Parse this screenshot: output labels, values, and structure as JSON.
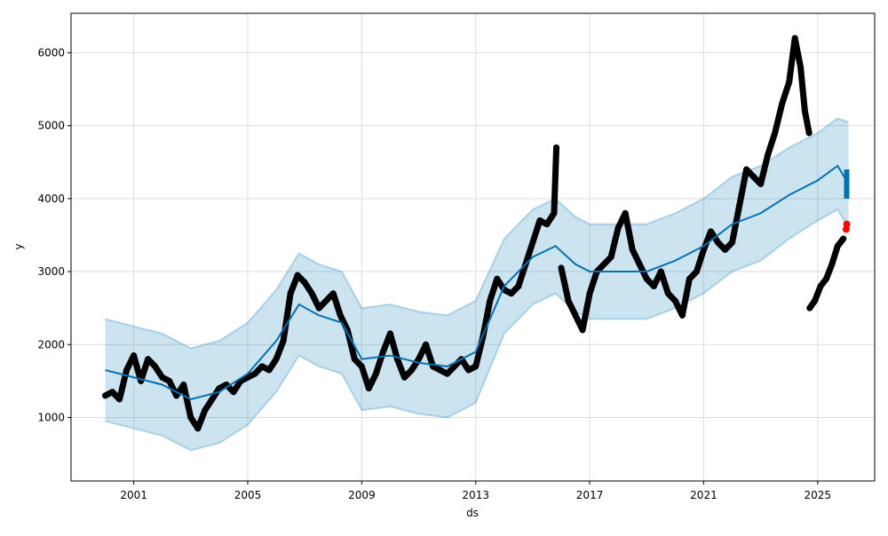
{
  "chart_data": {
    "type": "line",
    "title": "",
    "xlabel": "ds",
    "ylabel": "y",
    "xlim": [
      1998.8,
      2027.0
    ],
    "ylim": [
      130,
      6540
    ],
    "grid": true,
    "x_ticks": [
      "2001",
      "2005",
      "2009",
      "2013",
      "2017",
      "2021",
      "2025"
    ],
    "y_ticks": [
      "1000",
      "2000",
      "3000",
      "4000",
      "5000",
      "6000"
    ],
    "colors": {
      "observed": "#000000",
      "forecast": "#0072B2",
      "interval": "#0072B2",
      "highlight": "#ff0000"
    },
    "observed": [
      [
        2000.0,
        1300
      ],
      [
        2000.25,
        1350
      ],
      [
        2000.5,
        1250
      ],
      [
        2000.75,
        1650
      ],
      [
        2001.0,
        1850
      ],
      [
        2001.25,
        1500
      ],
      [
        2001.5,
        1800
      ],
      [
        2001.75,
        1700
      ],
      [
        2002.0,
        1550
      ],
      [
        2002.25,
        1500
      ],
      [
        2002.5,
        1300
      ],
      [
        2002.75,
        1450
      ],
      [
        2003.0,
        1000
      ],
      [
        2003.25,
        850
      ],
      [
        2003.5,
        1100
      ],
      [
        2003.75,
        1250
      ],
      [
        2004.0,
        1400
      ],
      [
        2004.25,
        1450
      ],
      [
        2004.5,
        1350
      ],
      [
        2004.75,
        1500
      ],
      [
        2005.0,
        1550
      ],
      [
        2005.25,
        1600
      ],
      [
        2005.5,
        1700
      ],
      [
        2005.75,
        1650
      ],
      [
        2006.0,
        1800
      ],
      [
        2006.25,
        2050
      ],
      [
        2006.5,
        2700
      ],
      [
        2006.75,
        2950
      ],
      [
        2007.0,
        2850
      ],
      [
        2007.25,
        2700
      ],
      [
        2007.5,
        2500
      ],
      [
        2007.75,
        2600
      ],
      [
        2008.0,
        2700
      ],
      [
        2008.25,
        2400
      ],
      [
        2008.5,
        2200
      ],
      [
        2008.75,
        1800
      ],
      [
        2009.0,
        1700
      ],
      [
        2009.25,
        1400
      ],
      [
        2009.5,
        1600
      ],
      [
        2009.75,
        1900
      ],
      [
        2010.0,
        2150
      ],
      [
        2010.25,
        1800
      ],
      [
        2010.5,
        1550
      ],
      [
        2010.75,
        1650
      ],
      [
        2011.0,
        1800
      ],
      [
        2011.25,
        2000
      ],
      [
        2011.5,
        1700
      ],
      [
        2011.75,
        1650
      ],
      [
        2012.0,
        1600
      ],
      [
        2012.25,
        1700
      ],
      [
        2012.5,
        1800
      ],
      [
        2012.75,
        1650
      ],
      [
        2013.0,
        1700
      ],
      [
        2013.25,
        2100
      ],
      [
        2013.5,
        2600
      ],
      [
        2013.75,
        2900
      ],
      [
        2014.0,
        2750
      ],
      [
        2014.25,
        2700
      ],
      [
        2014.5,
        2800
      ],
      [
        2014.75,
        3100
      ],
      [
        2015.0,
        3400
      ],
      [
        2015.25,
        3700
      ],
      [
        2015.5,
        3650
      ],
      [
        2015.75,
        3800
      ],
      [
        2015.83,
        4700
      ],
      [
        2016.0,
        3050
      ],
      [
        2016.25,
        2600
      ],
      [
        2016.5,
        2400
      ],
      [
        2016.75,
        2200
      ],
      [
        2017.0,
        2700
      ],
      [
        2017.25,
        3000
      ],
      [
        2017.5,
        3100
      ],
      [
        2017.75,
        3200
      ],
      [
        2018.0,
        3600
      ],
      [
        2018.25,
        3800
      ],
      [
        2018.5,
        3300
      ],
      [
        2018.75,
        3100
      ],
      [
        2019.0,
        2900
      ],
      [
        2019.25,
        2800
      ],
      [
        2019.5,
        3000
      ],
      [
        2019.75,
        2700
      ],
      [
        2020.0,
        2600
      ],
      [
        2020.25,
        2400
      ],
      [
        2020.5,
        2900
      ],
      [
        2020.75,
        3000
      ],
      [
        2021.0,
        3300
      ],
      [
        2021.25,
        3550
      ],
      [
        2021.5,
        3400
      ],
      [
        2021.75,
        3300
      ],
      [
        2022.0,
        3400
      ],
      [
        2022.25,
        3900
      ],
      [
        2022.5,
        4400
      ],
      [
        2022.75,
        4300
      ],
      [
        2023.0,
        4200
      ],
      [
        2023.25,
        4600
      ],
      [
        2023.5,
        4900
      ],
      [
        2023.75,
        5300
      ],
      [
        2024.0,
        5600
      ],
      [
        2024.2,
        6200
      ],
      [
        2024.4,
        5800
      ],
      [
        2024.55,
        5200
      ],
      [
        2024.7,
        4900
      ],
      [
        2024.72,
        2500
      ],
      [
        2024.9,
        2600
      ],
      [
        2025.1,
        2800
      ],
      [
        2025.3,
        2900
      ],
      [
        2025.5,
        3100
      ],
      [
        2025.7,
        3350
      ],
      [
        2025.9,
        3450
      ]
    ],
    "highlighted": [
      [
        2026.0,
        3580
      ],
      [
        2026.02,
        3650
      ]
    ],
    "yhat": [
      [
        2000.0,
        1650
      ],
      [
        2001.0,
        1550
      ],
      [
        2002.0,
        1450
      ],
      [
        2003.0,
        1250
      ],
      [
        2004.0,
        1350
      ],
      [
        2005.0,
        1600
      ],
      [
        2006.0,
        2050
      ],
      [
        2006.8,
        2550
      ],
      [
        2007.5,
        2400
      ],
      [
        2008.3,
        2300
      ],
      [
        2009.0,
        1800
      ],
      [
        2010.0,
        1850
      ],
      [
        2011.0,
        1750
      ],
      [
        2012.0,
        1700
      ],
      [
        2013.0,
        1900
      ],
      [
        2014.0,
        2800
      ],
      [
        2015.0,
        3200
      ],
      [
        2015.8,
        3350
      ],
      [
        2016.5,
        3100
      ],
      [
        2017.0,
        3000
      ],
      [
        2018.0,
        3000
      ],
      [
        2019.0,
        3000
      ],
      [
        2020.0,
        3150
      ],
      [
        2021.0,
        3350
      ],
      [
        2022.0,
        3650
      ],
      [
        2023.0,
        3800
      ],
      [
        2024.0,
        4050
      ],
      [
        2025.0,
        4250
      ],
      [
        2025.7,
        4450
      ],
      [
        2026.08,
        4200
      ]
    ],
    "yhat_lower": [
      [
        2000.0,
        950
      ],
      [
        2001.0,
        850
      ],
      [
        2002.0,
        750
      ],
      [
        2003.0,
        550
      ],
      [
        2004.0,
        650
      ],
      [
        2005.0,
        900
      ],
      [
        2006.0,
        1350
      ],
      [
        2006.8,
        1850
      ],
      [
        2007.5,
        1700
      ],
      [
        2008.3,
        1600
      ],
      [
        2009.0,
        1100
      ],
      [
        2010.0,
        1150
      ],
      [
        2011.0,
        1050
      ],
      [
        2012.0,
        1000
      ],
      [
        2013.0,
        1200
      ],
      [
        2014.0,
        2150
      ],
      [
        2015.0,
        2550
      ],
      [
        2015.8,
        2700
      ],
      [
        2016.5,
        2450
      ],
      [
        2017.0,
        2350
      ],
      [
        2018.0,
        2350
      ],
      [
        2019.0,
        2350
      ],
      [
        2020.0,
        2500
      ],
      [
        2021.0,
        2700
      ],
      [
        2022.0,
        3000
      ],
      [
        2023.0,
        3150
      ],
      [
        2024.0,
        3450
      ],
      [
        2025.0,
        3700
      ],
      [
        2025.7,
        3850
      ],
      [
        2026.08,
        3600
      ]
    ],
    "yhat_upper": [
      [
        2000.0,
        2350
      ],
      [
        2001.0,
        2250
      ],
      [
        2002.0,
        2150
      ],
      [
        2003.0,
        1950
      ],
      [
        2004.0,
        2050
      ],
      [
        2005.0,
        2300
      ],
      [
        2006.0,
        2750
      ],
      [
        2006.8,
        3250
      ],
      [
        2007.5,
        3100
      ],
      [
        2008.3,
        3000
      ],
      [
        2009.0,
        2500
      ],
      [
        2010.0,
        2550
      ],
      [
        2011.0,
        2450
      ],
      [
        2012.0,
        2400
      ],
      [
        2013.0,
        2600
      ],
      [
        2014.0,
        3450
      ],
      [
        2015.0,
        3850
      ],
      [
        2015.8,
        4000
      ],
      [
        2016.5,
        3750
      ],
      [
        2017.0,
        3650
      ],
      [
        2018.0,
        3650
      ],
      [
        2019.0,
        3650
      ],
      [
        2020.0,
        3800
      ],
      [
        2021.0,
        4000
      ],
      [
        2022.0,
        4300
      ],
      [
        2023.0,
        4450
      ],
      [
        2024.0,
        4700
      ],
      [
        2025.0,
        4900
      ],
      [
        2025.7,
        5100
      ],
      [
        2026.08,
        5050
      ]
    ]
  }
}
